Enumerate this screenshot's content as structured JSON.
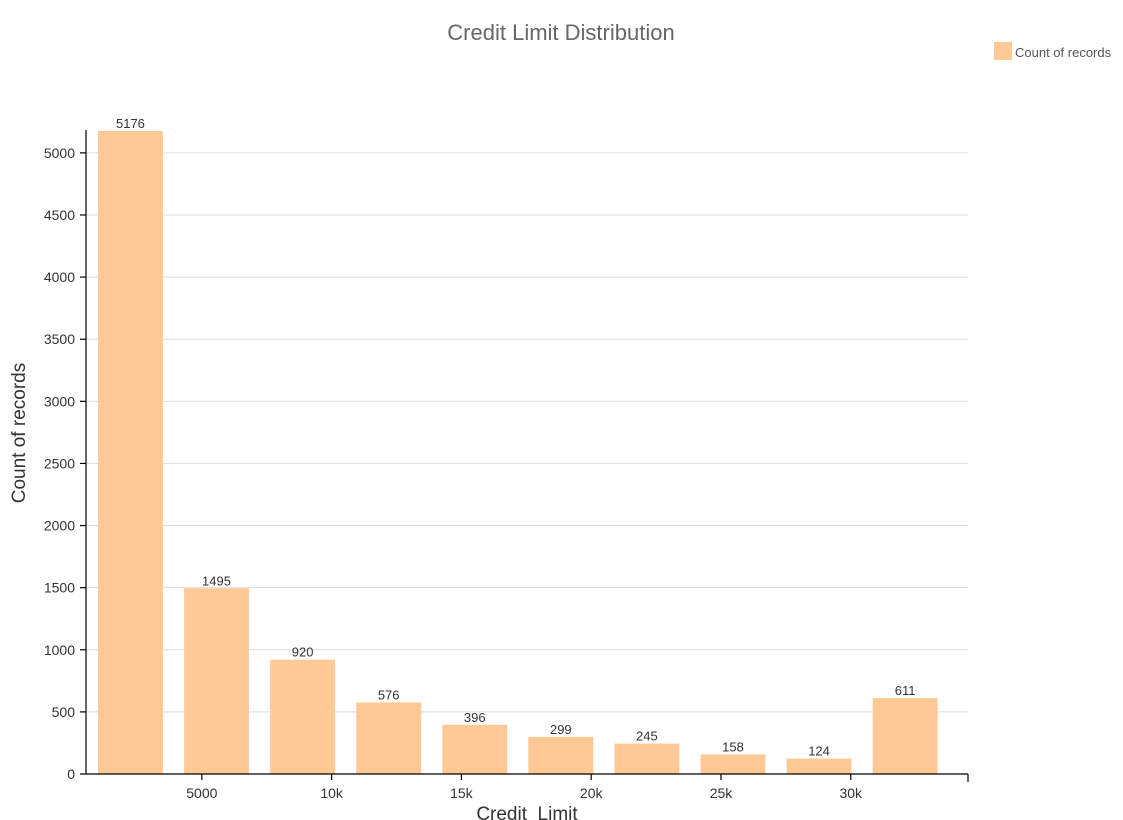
{
  "chart_data": {
    "type": "bar",
    "title": "Credit Limit Distribution",
    "xlabel": "Credit_Limit",
    "ylabel": "Count of records",
    "x_range": [
      1000,
      34516
    ],
    "ylim": [
      0,
      5176
    ],
    "yticks": [
      0,
      500,
      1000,
      1500,
      2000,
      2500,
      3000,
      3500,
      4000,
      4500,
      5000
    ],
    "ytick_labels": [
      "0",
      "500",
      "1000",
      "1500",
      "2000",
      "2500",
      "3000",
      "3500",
      "4000",
      "4500",
      "5000"
    ],
    "xticks": [
      5000,
      10000,
      15000,
      20000,
      25000,
      30000
    ],
    "xtick_labels": [
      "5000",
      "10k",
      "15k",
      "20k",
      "25k",
      "30k"
    ],
    "bins": [
      {
        "from": 1000,
        "to": 3500
      },
      {
        "from": 4316,
        "to": 6816
      },
      {
        "from": 7632,
        "to": 10132
      },
      {
        "from": 10948,
        "to": 13448
      },
      {
        "from": 14264,
        "to": 16764
      },
      {
        "from": 17580,
        "to": 20080
      },
      {
        "from": 20896,
        "to": 23396
      },
      {
        "from": 24212,
        "to": 26712
      },
      {
        "from": 27528,
        "to": 30028
      },
      {
        "from": 30844,
        "to": 33344
      }
    ],
    "values": [
      5176,
      1495,
      920,
      576,
      396,
      299,
      245,
      158,
      124,
      611
    ],
    "grid": "horizontal",
    "legend_position": "top-right",
    "series": [
      {
        "name": "Count of records",
        "color": "#ffc996"
      }
    ]
  }
}
